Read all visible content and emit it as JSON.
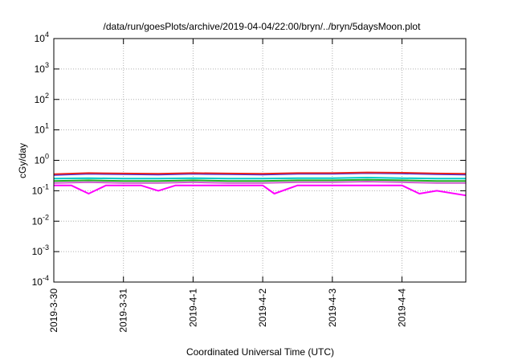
{
  "chart_data": {
    "type": "line",
    "title": "/data/run/goesPlots/archive/2019-04-04/22:00/bryn/../bryn/5daysMoon.plot",
    "xlabel": "Coordinated Universal Time (UTC)",
    "ylabel": "cGy/day",
    "yscale": "log",
    "ylim": [
      0.0001,
      10000
    ],
    "y_ticks": [
      {
        "base": "10",
        "exp": "4"
      },
      {
        "base": "10",
        "exp": "3"
      },
      {
        "base": "10",
        "exp": "2"
      },
      {
        "base": "10",
        "exp": "1"
      },
      {
        "base": "10",
        "exp": "0"
      },
      {
        "base": "10",
        "exp": "-1"
      },
      {
        "base": "10",
        "exp": "-2"
      },
      {
        "base": "10",
        "exp": "-3"
      },
      {
        "base": "10",
        "exp": "-4"
      }
    ],
    "x_ticks": [
      "2019-3-30",
      "2019-3-31",
      "2019-4-1",
      "2019-4-2",
      "2019-4-3",
      "2019-4-4"
    ],
    "xlim": [
      "2019-03-30",
      "2019-04-04T22:00"
    ],
    "grid": true,
    "legend": "none",
    "series": [
      {
        "color": "#2b2bff",
        "x": [
          "2019-03-30",
          "2019-03-30T12:00",
          "2019-03-31",
          "2019-03-31T12:00",
          "2019-04-01",
          "2019-04-01T12:00",
          "2019-04-02",
          "2019-04-02T12:00",
          "2019-04-03",
          "2019-04-03T12:00",
          "2019-04-04",
          "2019-04-04T12:00",
          "2019-04-04T22:00"
        ],
        "values": [
          0.33,
          0.36,
          0.35,
          0.34,
          0.36,
          0.35,
          0.34,
          0.36,
          0.36,
          0.38,
          0.37,
          0.35,
          0.34
        ]
      },
      {
        "color": "#e8231e",
        "x": [
          "2019-03-30",
          "2019-03-30T12:00",
          "2019-03-31",
          "2019-03-31T12:00",
          "2019-04-01",
          "2019-04-01T12:00",
          "2019-04-02",
          "2019-04-02T12:00",
          "2019-04-03",
          "2019-04-03T12:00",
          "2019-04-04",
          "2019-04-04T12:00",
          "2019-04-04T22:00"
        ],
        "values": [
          0.35,
          0.38,
          0.37,
          0.36,
          0.38,
          0.37,
          0.36,
          0.38,
          0.38,
          0.4,
          0.39,
          0.37,
          0.36
        ]
      },
      {
        "color": "#00c8c8",
        "x": [
          "2019-03-30",
          "2019-03-30T12:00",
          "2019-03-31",
          "2019-03-31T12:00",
          "2019-04-01",
          "2019-04-01T12:00",
          "2019-04-02",
          "2019-04-02T12:00",
          "2019-04-03",
          "2019-04-03T12:00",
          "2019-04-04",
          "2019-04-04T12:00",
          "2019-04-04T22:00"
        ],
        "values": [
          0.25,
          0.26,
          0.25,
          0.25,
          0.26,
          0.25,
          0.25,
          0.26,
          0.26,
          0.27,
          0.26,
          0.25,
          0.25
        ]
      },
      {
        "color": "#20b020",
        "x": [
          "2019-03-30",
          "2019-03-30T12:00",
          "2019-03-31",
          "2019-03-31T12:00",
          "2019-04-01",
          "2019-04-01T12:00",
          "2019-04-02",
          "2019-04-02T12:00",
          "2019-04-03",
          "2019-04-03T12:00",
          "2019-04-04",
          "2019-04-04T12:00",
          "2019-04-04T22:00"
        ],
        "values": [
          0.21,
          0.22,
          0.21,
          0.21,
          0.22,
          0.21,
          0.21,
          0.22,
          0.22,
          0.23,
          0.22,
          0.21,
          0.21
        ]
      },
      {
        "color": "#d060d0",
        "x": [
          "2019-03-30",
          "2019-03-30T12:00",
          "2019-03-31",
          "2019-03-31T12:00",
          "2019-04-01",
          "2019-04-01T12:00",
          "2019-04-02",
          "2019-04-02T12:00",
          "2019-04-03",
          "2019-04-03T12:00",
          "2019-04-04",
          "2019-04-04T12:00",
          "2019-04-04T22:00"
        ],
        "values": [
          0.18,
          0.19,
          0.18,
          0.18,
          0.19,
          0.18,
          0.18,
          0.19,
          0.19,
          0.2,
          0.19,
          0.18,
          0.18
        ]
      },
      {
        "color": "#ff00ff",
        "x": [
          "2019-03-30",
          "2019-03-30T06:00",
          "2019-03-30T12:00",
          "2019-03-30T18:00",
          "2019-03-31",
          "2019-03-31T06:00",
          "2019-03-31T12:00",
          "2019-03-31T18:00",
          "2019-04-01",
          "2019-04-01T12:00",
          "2019-04-02",
          "2019-04-02T04:00",
          "2019-04-02T12:00",
          "2019-04-03",
          "2019-04-03T12:00",
          "2019-04-04",
          "2019-04-04T06:00",
          "2019-04-04T12:00",
          "2019-04-04T22:00"
        ],
        "values": [
          0.15,
          0.15,
          0.08,
          0.15,
          0.15,
          0.15,
          0.1,
          0.15,
          0.15,
          0.15,
          0.15,
          0.08,
          0.15,
          0.15,
          0.15,
          0.15,
          0.08,
          0.1,
          0.07
        ]
      }
    ]
  }
}
